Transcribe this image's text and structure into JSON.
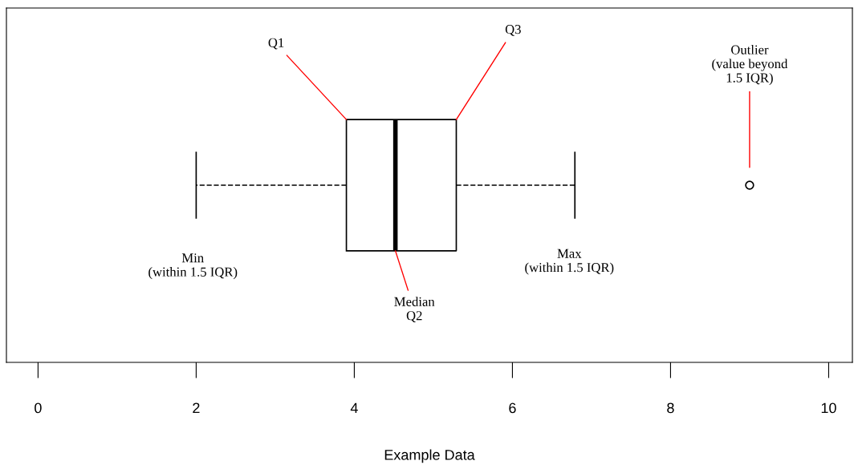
{
  "chart_data": {
    "type": "box",
    "orientation": "horizontal",
    "xlabel": "Example Data",
    "boxes": [
      {
        "low": 2.0,
        "q1": 3.9,
        "median": 4.52,
        "q3": 5.29,
        "high": 6.79,
        "outliers": [
          9.0
        ]
      }
    ],
    "xlim": [
      -0.4,
      10.3
    ],
    "xticks": [
      0,
      2,
      4,
      6,
      8,
      10
    ],
    "tick_labels": "x",
    "grid": false,
    "annotations": [
      "Q1",
      "Q3",
      "Median\nQ2",
      "Min\n(within 1.5 IQR)",
      "Max\n(within 1.5 IQR)",
      "Outlier\n(value beyond\n1.5 IQR)"
    ]
  }
}
